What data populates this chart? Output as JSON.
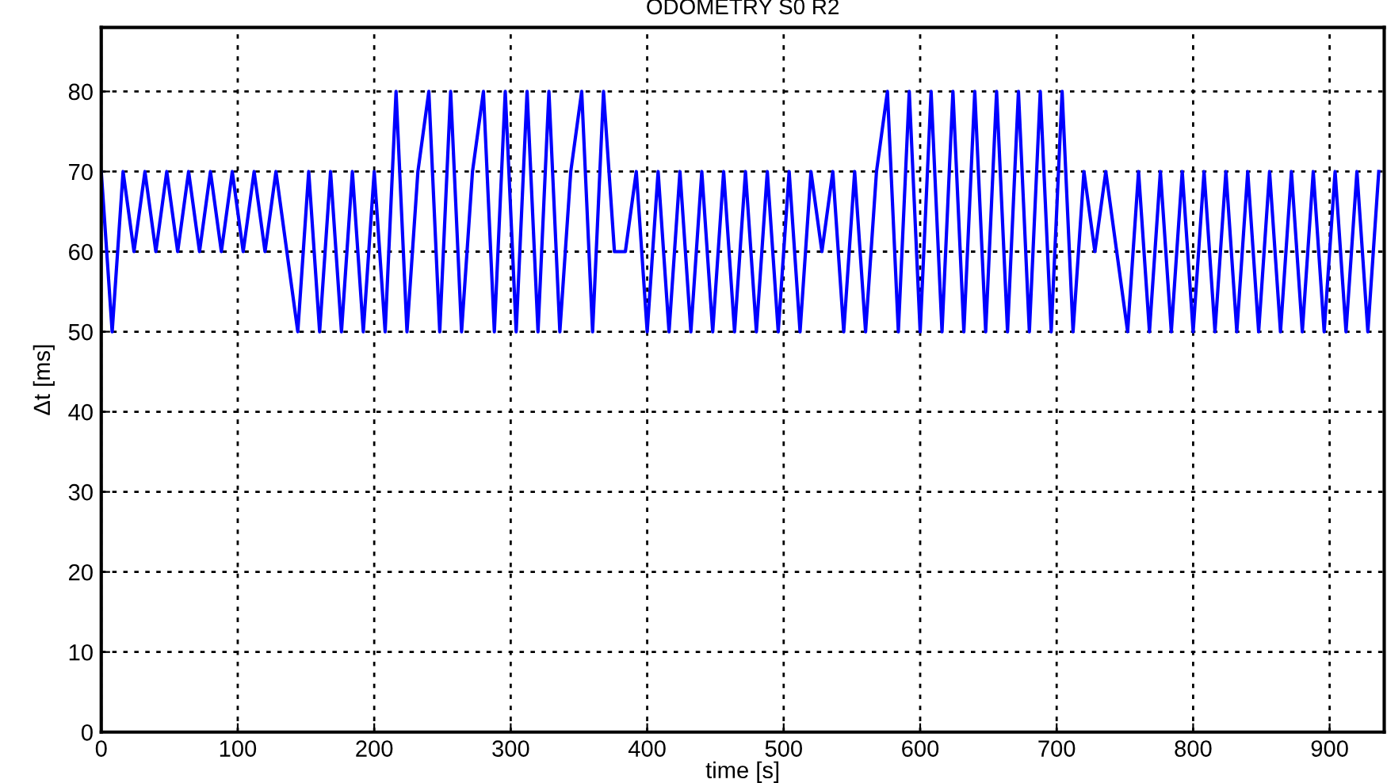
{
  "chart_data": {
    "type": "line",
    "title": "ODOMETRY S0 R2",
    "xlabel": "time [s]",
    "ylabel": "Δt [ms]",
    "x": [
      0,
      8,
      16,
      24,
      32,
      40,
      48,
      56,
      64,
      72,
      80,
      88,
      96,
      104,
      112,
      120,
      128,
      136,
      144,
      152,
      160,
      168,
      176,
      184,
      192,
      200,
      208,
      216,
      224,
      232,
      240,
      248,
      256,
      264,
      272,
      280,
      288,
      296,
      304,
      312,
      320,
      328,
      336,
      344,
      352,
      360,
      368,
      376,
      384,
      392,
      400,
      408,
      416,
      424,
      432,
      440,
      448,
      456,
      464,
      472,
      480,
      488,
      496,
      504,
      512,
      520,
      528,
      536,
      544,
      552,
      560,
      568,
      576,
      584,
      592,
      600,
      608,
      616,
      624,
      632,
      640,
      648,
      656,
      664,
      672,
      680,
      688,
      696,
      704,
      712,
      720,
      728,
      736,
      744,
      752,
      760,
      768,
      776,
      784,
      792,
      800,
      808,
      816,
      824,
      832,
      840,
      848,
      856,
      864,
      872,
      880,
      888,
      896,
      904,
      912,
      920,
      928,
      936
    ],
    "series": [
      {
        "color": "#0000ff",
        "values": [
          70,
          50,
          70,
          60,
          70,
          60,
          70,
          60,
          70,
          60,
          70,
          60,
          70,
          60,
          70,
          60,
          70,
          60,
          50,
          70,
          50,
          70,
          50,
          70,
          50,
          70,
          50,
          80,
          50,
          70,
          80,
          50,
          80,
          50,
          70,
          80,
          50,
          80,
          50,
          80,
          50,
          80,
          50,
          70,
          80,
          50,
          80,
          60,
          60,
          70,
          50,
          70,
          50,
          70,
          50,
          70,
          50,
          70,
          50,
          70,
          50,
          70,
          50,
          70,
          50,
          70,
          60,
          70,
          50,
          70,
          50,
          70,
          80,
          50,
          80,
          50,
          80,
          50,
          80,
          50,
          80,
          50,
          80,
          50,
          80,
          50,
          80,
          50,
          80,
          50,
          70,
          60,
          70,
          60,
          50,
          70,
          50,
          70,
          50,
          70,
          50,
          70,
          50,
          70,
          50,
          70,
          50,
          70,
          50,
          70,
          50,
          70,
          50,
          70,
          50,
          70,
          50,
          70
        ]
      }
    ],
    "xlim": [
      0,
      940
    ],
    "ylim": [
      0,
      88
    ],
    "xticks": [
      0,
      100,
      200,
      300,
      400,
      500,
      600,
      700,
      800,
      900
    ],
    "yticks": [
      0,
      10,
      20,
      30,
      40,
      50,
      60,
      70,
      80
    ],
    "grid": true,
    "legend": false,
    "marker": "none",
    "line_style": "solid"
  }
}
